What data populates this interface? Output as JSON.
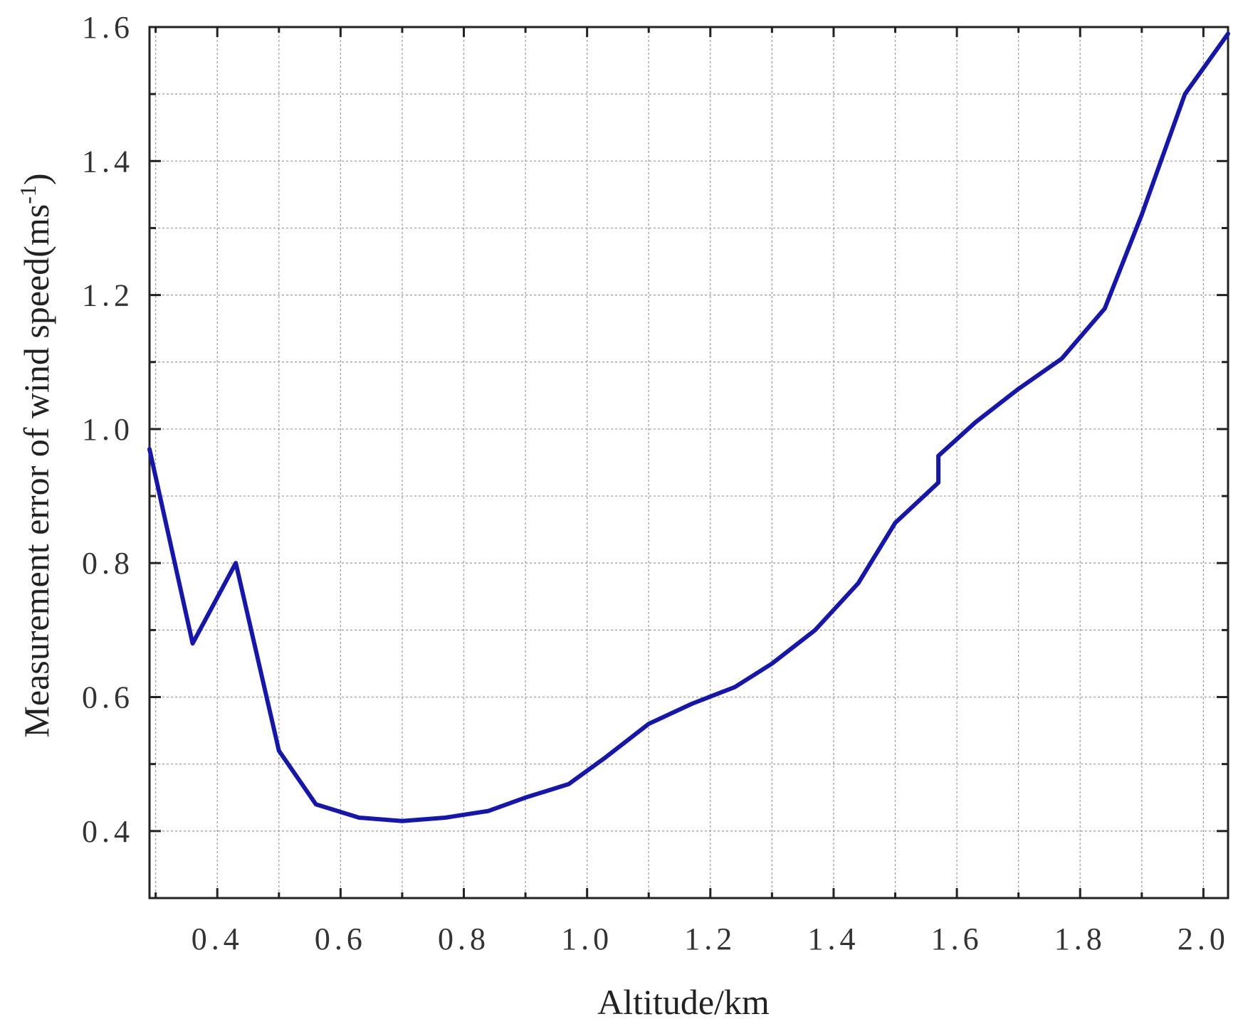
{
  "chart_data": {
    "type": "line",
    "title": "",
    "xlabel": "Altitude/km",
    "ylabel_main": "Measurement error of wind speed(ms",
    "ylabel_sup": "-1",
    "ylabel_tail": ")",
    "xlim": [
      0.29,
      2.04
    ],
    "ylim": [
      0.3,
      1.6
    ],
    "x_ticks": [
      0.4,
      0.6,
      0.8,
      1.0,
      1.2,
      1.4,
      1.6,
      1.8,
      2.0
    ],
    "x_tick_labels": [
      "0.4",
      "0.6",
      "0.8",
      "1.0",
      "1.2",
      "1.4",
      "1.6",
      "1.8",
      "2.0"
    ],
    "y_ticks": [
      0.4,
      0.6,
      0.8,
      1.0,
      1.2,
      1.4,
      1.6
    ],
    "y_tick_labels": [
      "0.4",
      "0.6",
      "0.8",
      "1.0",
      "1.2",
      "1.4",
      "1.6"
    ],
    "grid": true,
    "color": "#1515b0",
    "series": [
      {
        "x": [
          0.29,
          0.36,
          0.43,
          0.5,
          0.56,
          0.63,
          0.7,
          0.77,
          0.84,
          0.9,
          0.97,
          1.03,
          1.1,
          1.17,
          1.24,
          1.3,
          1.37,
          1.44,
          1.5,
          1.57,
          1.57,
          1.63,
          1.7,
          1.77,
          1.84,
          1.9,
          1.97,
          2.04
        ],
        "y": [
          0.97,
          0.68,
          0.8,
          0.52,
          0.44,
          0.42,
          0.415,
          0.42,
          0.43,
          0.45,
          0.47,
          0.51,
          0.56,
          0.59,
          0.615,
          0.65,
          0.7,
          0.77,
          0.86,
          0.92,
          0.96,
          1.01,
          1.06,
          1.105,
          1.18,
          1.32,
          1.5,
          1.59
        ]
      }
    ]
  }
}
